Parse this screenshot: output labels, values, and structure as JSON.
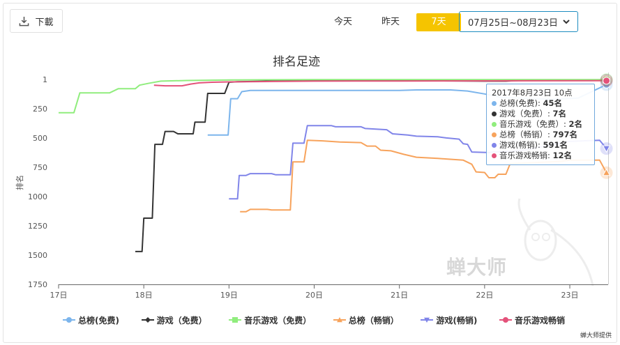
{
  "toolbar": {
    "download_label": "下載",
    "range_buttons": [
      "今天",
      "昨天",
      "7天"
    ],
    "active_range": "7天",
    "date_range": "07月25日~08月23日"
  },
  "chart_data": {
    "type": "line",
    "title": "排名足迹",
    "ylabel": "排名",
    "xlabel": "",
    "y_inverted": true,
    "ylim": [
      1,
      1750
    ],
    "y_ticks": [
      1,
      250,
      500,
      750,
      1000,
      1250,
      1500,
      1750
    ],
    "x_ticks": [
      "17日",
      "18日",
      "19日",
      "20日",
      "21日",
      "22日",
      "23日"
    ],
    "x_range": [
      17,
      23.45
    ],
    "grid": false,
    "legend_position": "bottom",
    "series": [
      {
        "name": "总榜(免费)",
        "color": "#7cb5ec",
        "marker": "circle",
        "points": [
          [
            18.75,
            475
          ],
          [
            18.99,
            475
          ],
          [
            19.02,
            165
          ],
          [
            19.1,
            165
          ],
          [
            19.15,
            105
          ],
          [
            19.25,
            95
          ],
          [
            20.0,
            95
          ],
          [
            21.0,
            95
          ],
          [
            21.2,
            90
          ],
          [
            21.6,
            90
          ],
          [
            21.8,
            100
          ],
          [
            22.0,
            125
          ],
          [
            22.2,
            155
          ],
          [
            22.8,
            170
          ],
          [
            23.1,
            160
          ],
          [
            23.43,
            45
          ]
        ]
      },
      {
        "name": "游戏（免费）",
        "color": "#333333",
        "marker": "diamond",
        "points": [
          [
            17.9,
            1470
          ],
          [
            17.98,
            1470
          ],
          [
            18.0,
            1185
          ],
          [
            18.1,
            1185
          ],
          [
            18.13,
            555
          ],
          [
            18.22,
            555
          ],
          [
            18.25,
            445
          ],
          [
            18.35,
            445
          ],
          [
            18.4,
            465
          ],
          [
            18.58,
            465
          ],
          [
            18.6,
            365
          ],
          [
            18.72,
            365
          ],
          [
            18.75,
            120
          ],
          [
            18.95,
            120
          ],
          [
            19.0,
            25
          ],
          [
            19.1,
            20
          ],
          [
            19.5,
            15
          ],
          [
            20.0,
            10
          ],
          [
            21.0,
            10
          ],
          [
            22.0,
            15
          ],
          [
            22.25,
            15
          ],
          [
            22.4,
            10
          ],
          [
            23.0,
            8
          ],
          [
            23.43,
            7
          ]
        ]
      },
      {
        "name": "音乐游戏（免费）",
        "color": "#90ed7d",
        "marker": "square",
        "points": [
          [
            17.0,
            285
          ],
          [
            17.18,
            285
          ],
          [
            17.25,
            115
          ],
          [
            17.6,
            115
          ],
          [
            17.7,
            80
          ],
          [
            17.9,
            80
          ],
          [
            17.95,
            50
          ],
          [
            18.05,
            35
          ],
          [
            18.2,
            15
          ],
          [
            18.5,
            10
          ],
          [
            19.0,
            5
          ],
          [
            20.0,
            3
          ],
          [
            21.0,
            3
          ],
          [
            22.0,
            2
          ],
          [
            23.43,
            2
          ]
        ]
      },
      {
        "name": "总榜（畅销）",
        "color": "#f7a35c",
        "marker": "triangle",
        "points": [
          [
            19.13,
            1130
          ],
          [
            19.2,
            1130
          ],
          [
            19.25,
            1110
          ],
          [
            19.45,
            1110
          ],
          [
            19.5,
            1115
          ],
          [
            19.72,
            1115
          ],
          [
            19.75,
            705
          ],
          [
            19.88,
            705
          ],
          [
            19.92,
            520
          ],
          [
            20.1,
            525
          ],
          [
            20.3,
            535
          ],
          [
            20.55,
            540
          ],
          [
            20.62,
            570
          ],
          [
            20.72,
            570
          ],
          [
            20.78,
            605
          ],
          [
            20.9,
            610
          ],
          [
            21.05,
            640
          ],
          [
            21.2,
            665
          ],
          [
            21.45,
            675
          ],
          [
            21.55,
            680
          ],
          [
            21.75,
            690
          ],
          [
            21.85,
            725
          ],
          [
            21.9,
            790
          ],
          [
            22.0,
            795
          ],
          [
            22.05,
            840
          ],
          [
            22.12,
            840
          ],
          [
            22.16,
            810
          ],
          [
            22.25,
            810
          ],
          [
            22.3,
            720
          ],
          [
            22.9,
            700
          ],
          [
            23.0,
            690
          ],
          [
            23.35,
            690
          ],
          [
            23.43,
            797
          ]
        ]
      },
      {
        "name": "游戏(畅销)",
        "color": "#8085e9",
        "marker": "triangle-down",
        "points": [
          [
            19.0,
            1020
          ],
          [
            19.1,
            1020
          ],
          [
            19.12,
            820
          ],
          [
            19.2,
            820
          ],
          [
            19.25,
            805
          ],
          [
            19.5,
            805
          ],
          [
            19.55,
            815
          ],
          [
            19.72,
            815
          ],
          [
            19.75,
            545
          ],
          [
            19.88,
            545
          ],
          [
            19.92,
            395
          ],
          [
            20.2,
            395
          ],
          [
            20.25,
            405
          ],
          [
            20.55,
            405
          ],
          [
            20.6,
            420
          ],
          [
            20.85,
            430
          ],
          [
            20.92,
            465
          ],
          [
            21.1,
            475
          ],
          [
            21.2,
            485
          ],
          [
            21.45,
            490
          ],
          [
            21.55,
            500
          ],
          [
            21.7,
            510
          ],
          [
            21.75,
            550
          ],
          [
            21.8,
            555
          ],
          [
            21.85,
            620
          ],
          [
            22.05,
            625
          ],
          [
            22.1,
            620
          ],
          [
            22.3,
            615
          ],
          [
            22.5,
            600
          ],
          [
            23.0,
            530
          ],
          [
            23.35,
            520
          ],
          [
            23.43,
            591
          ]
        ]
      },
      {
        "name": "音乐游戏畅销",
        "color": "#e4527a",
        "marker": "circle",
        "points": [
          [
            18.12,
            50
          ],
          [
            18.25,
            55
          ],
          [
            18.45,
            55
          ],
          [
            18.55,
            40
          ],
          [
            18.65,
            30
          ],
          [
            18.8,
            25
          ],
          [
            19.0,
            22
          ],
          [
            19.5,
            18
          ],
          [
            20.0,
            15
          ],
          [
            21.0,
            14
          ],
          [
            22.0,
            13
          ],
          [
            23.43,
            12
          ]
        ]
      }
    ]
  },
  "tooltip": {
    "header": "2017年8月23日  10点",
    "rows": [
      {
        "label": "总榜(免费)",
        "value": "45名",
        "color": "#7cb5ec"
      },
      {
        "label": "游戏（免费）",
        "value": "7名",
        "color": "#333333"
      },
      {
        "label": "音乐游戏（免费）",
        "value": "2名",
        "color": "#90ed7d"
      },
      {
        "label": "总榜（畅销）",
        "value": "797名",
        "color": "#f7a35c"
      },
      {
        "label": "游戏(畅销)",
        "value": "591名",
        "color": "#8085e9"
      },
      {
        "label": "音乐游戏畅销",
        "value": "12名",
        "color": "#e4527a"
      }
    ]
  },
  "watermark": "蝉大师",
  "credit": "蝉大师提供"
}
